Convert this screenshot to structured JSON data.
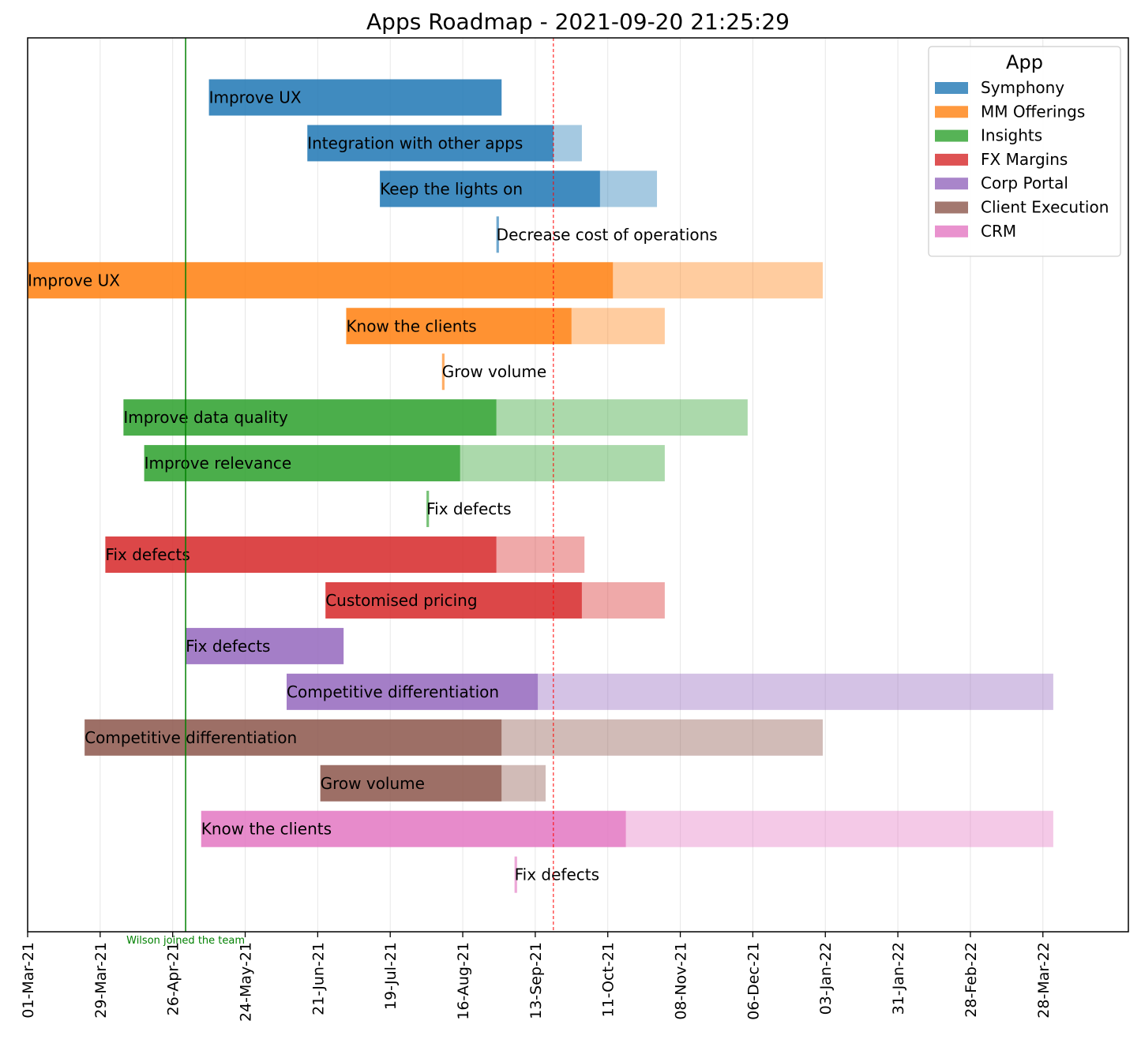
{
  "chart_data": {
    "type": "gantt",
    "title": "Apps Roadmap - 2021-09-20 21:25:29",
    "x_axis": {
      "type": "date",
      "range": [
        "2021-03-01",
        "2022-04-30"
      ],
      "tick_dates": [
        "2021-03-01",
        "2021-03-29",
        "2021-04-26",
        "2021-05-24",
        "2021-06-21",
        "2021-07-19",
        "2021-08-16",
        "2021-09-13",
        "2021-10-11",
        "2021-11-08",
        "2021-12-06",
        "2022-01-03",
        "2022-01-31",
        "2022-02-28",
        "2022-03-28"
      ],
      "tick_labels": [
        "01-Mar-21",
        "29-Mar-21",
        "26-Apr-21",
        "24-May-21",
        "21-Jun-21",
        "19-Jul-21",
        "16-Aug-21",
        "13-Sep-21",
        "11-Oct-21",
        "08-Nov-21",
        "06-Dec-21",
        "03-Jan-22",
        "31-Jan-22",
        "28-Feb-22",
        "28-Mar-22"
      ],
      "grid": true
    },
    "current_date": "2021-09-20",
    "milestone": {
      "date": "2021-05-01",
      "label": "Wilson joined the team"
    },
    "legend": {
      "title": "App",
      "position": "top-right",
      "entries": [
        {
          "name": "Symphony",
          "color": "#1f77b4"
        },
        {
          "name": "MM Offerings",
          "color": "#ff7f0e"
        },
        {
          "name": "Insights",
          "color": "#2ca02c"
        },
        {
          "name": "FX Margins",
          "color": "#d62728"
        },
        {
          "name": "Corp Portal",
          "color": "#9467bd"
        },
        {
          "name": "Client Execution",
          "color": "#8c564b"
        },
        {
          "name": "CRM",
          "color": "#e377c2"
        }
      ]
    },
    "tasks": [
      {
        "label": "Improve UX",
        "app": "Symphony",
        "start": "2021-05-10",
        "progress_end": "2021-08-31",
        "end": "2021-08-31"
      },
      {
        "label": "Integration with other apps",
        "app": "Symphony",
        "start": "2021-06-17",
        "progress_end": "2021-09-20",
        "end": "2021-10-01"
      },
      {
        "label": "Keep the lights on",
        "app": "Symphony",
        "start": "2021-07-15",
        "progress_end": "2021-10-08",
        "end": "2021-10-30"
      },
      {
        "label": "Decrease cost of operations",
        "app": "Symphony",
        "start": "2021-08-29",
        "progress_end": "2021-08-29",
        "end": "2021-08-30"
      },
      {
        "label": "Improve UX",
        "app": "MM Offerings",
        "start": "2021-03-01",
        "progress_end": "2021-10-13",
        "end": "2022-01-02"
      },
      {
        "label": "Know the clients",
        "app": "MM Offerings",
        "start": "2021-07-02",
        "progress_end": "2021-09-27",
        "end": "2021-11-02"
      },
      {
        "label": "Grow volume",
        "app": "MM Offerings",
        "start": "2021-08-08",
        "progress_end": "2021-08-08",
        "end": "2021-08-09"
      },
      {
        "label": "Improve data quality",
        "app": "Insights",
        "start": "2021-04-07",
        "progress_end": "2021-08-29",
        "end": "2021-12-04"
      },
      {
        "label": "Improve relevance",
        "app": "Insights",
        "start": "2021-04-15",
        "progress_end": "2021-08-15",
        "end": "2021-11-02"
      },
      {
        "label": "Fix defects",
        "app": "Insights",
        "start": "2021-08-02",
        "progress_end": "2021-08-02",
        "end": "2021-08-03"
      },
      {
        "label": "Fix defects",
        "app": "FX Margins",
        "start": "2021-03-31",
        "progress_end": "2021-08-29",
        "end": "2021-10-02"
      },
      {
        "label": "Customised pricing",
        "app": "FX Margins",
        "start": "2021-06-24",
        "progress_end": "2021-10-01",
        "end": "2021-11-02"
      },
      {
        "label": "Fix defects",
        "app": "Corp Portal",
        "start": "2021-05-01",
        "progress_end": "2021-07-01",
        "end": "2021-07-01"
      },
      {
        "label": "Competitive differentiation",
        "app": "Corp Portal",
        "start": "2021-06-09",
        "progress_end": "2021-09-14",
        "end": "2022-04-01"
      },
      {
        "label": "Competitive differentiation",
        "app": "Client Execution",
        "start": "2021-03-23",
        "progress_end": "2021-08-31",
        "end": "2022-01-02"
      },
      {
        "label": "Grow volume",
        "app": "Client Execution",
        "start": "2021-06-22",
        "progress_end": "2021-08-31",
        "end": "2021-09-17"
      },
      {
        "label": "Know the clients",
        "app": "CRM",
        "start": "2021-05-07",
        "progress_end": "2021-10-18",
        "end": "2022-04-01"
      },
      {
        "label": "Fix defects",
        "app": "CRM",
        "start": "2021-09-05",
        "progress_end": "2021-09-05",
        "end": "2021-09-06"
      }
    ]
  }
}
